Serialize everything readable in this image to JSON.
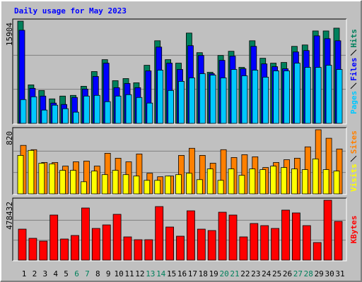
{
  "chart_data": [
    {
      "type": "bar",
      "title": "Daily usage for May 2023",
      "ylim": [
        0,
        15904
      ],
      "yticks": [
        15904
      ],
      "grid_divisions": 3,
      "series": [
        {
          "name": "Hits",
          "color": "#00805c",
          "values": [
            15904,
            5991,
            5120,
            3813,
            4248,
            4357,
            5773,
            8061,
            9913,
            6645,
            6972,
            6318,
            9041,
            12854,
            9913,
            9368,
            14052,
            11002,
            7952,
            10566,
            11220,
            8715,
            12854,
            10131,
            9368,
            9477,
            11983,
            12200,
            14379,
            14379,
            14815
          ]
        },
        {
          "name": "Files",
          "color": "#0000ff",
          "values": [
            14488,
            5447,
            4248,
            3159,
            2941,
            4031,
            5338,
            7298,
            9368,
            5556,
            6209,
            5556,
            8170,
            11874,
            9368,
            8388,
            12091,
            10566,
            7734,
            9804,
            10458,
            8497,
            11983,
            9259,
            8823,
            8497,
            11111,
            11329,
            13616,
            13181,
            12854
          ]
        },
        {
          "name": "Pages",
          "color": "#00c8ff",
          "values": [
            3704,
            4139,
            2070,
            2832,
            2288,
            1743,
            4248,
            4357,
            3377,
            4248,
            4466,
            4031,
            3159,
            8279,
            5120,
            6536,
            7081,
            7734,
            7516,
            7081,
            8388,
            7407,
            8279,
            7189,
            8170,
            8170,
            9368,
            8715,
            8715,
            9041,
            8388
          ]
        }
      ]
    },
    {
      "type": "bar",
      "ylim": [
        0,
        820
      ],
      "yticks": [
        820
      ],
      "grid_divisions": 3,
      "series": [
        {
          "name": "Sites",
          "color": "#ff8000",
          "values": [
            620,
            565,
            401,
            401,
            355,
            410,
            419,
            355,
            519,
            456,
            410,
            510,
            264,
            219,
            228,
            492,
            583,
            492,
            392,
            565,
            465,
            501,
            474,
            337,
            401,
            437,
            456,
            601,
            820,
            711,
            574
          ]
        },
        {
          "name": "Visits",
          "color": "#ffff00",
          "values": [
            492,
            556,
            392,
            383,
            301,
            301,
            155,
            292,
            246,
            301,
            246,
            228,
            173,
            173,
            228,
            246,
            264,
            182,
            319,
            173,
            319,
            237,
            319,
            310,
            355,
            337,
            319,
            310,
            447,
            310,
            292
          ]
        }
      ]
    },
    {
      "type": "bar",
      "ylim": [
        0,
        478432
      ],
      "yticks": [
        478432
      ],
      "grid_divisions": 3,
      "series": [
        {
          "name": "KBytes",
          "color": "#ff0000",
          "values": [
            247659,
            174487,
            151972,
            360232,
            168858,
            197001,
            416517,
            253287,
            281431,
            365861,
            185744,
            163229,
            163229,
            427774,
            264544,
            191372,
            394003,
            247659,
            236402,
            382746,
            360232,
            185744,
            292688,
            275802,
            253287,
            399632,
            377117,
            275802,
            140715,
            478432,
            309574
          ]
        }
      ],
      "categories": [
        "1",
        "2",
        "3",
        "4",
        "5",
        "6",
        "7",
        "8",
        "9",
        "10",
        "11",
        "12",
        "13",
        "14",
        "15",
        "16",
        "17",
        "18",
        "19",
        "20",
        "21",
        "22",
        "23",
        "24",
        "25",
        "26",
        "27",
        "28",
        "29",
        "30",
        "31"
      ],
      "category_colors": [
        "#000000",
        "#000000",
        "#000000",
        "#000000",
        "#000000",
        "#00805c",
        "#00805c",
        "#000000",
        "#000000",
        "#000000",
        "#000000",
        "#000000",
        "#00805c",
        "#00805c",
        "#000000",
        "#000000",
        "#000000",
        "#000000",
        "#000000",
        "#00805c",
        "#00805c",
        "#000000",
        "#000000",
        "#000000",
        "#000000",
        "#000000",
        "#00805c",
        "#00805c",
        "#000000",
        "#000000",
        "#000000"
      ]
    }
  ]
}
